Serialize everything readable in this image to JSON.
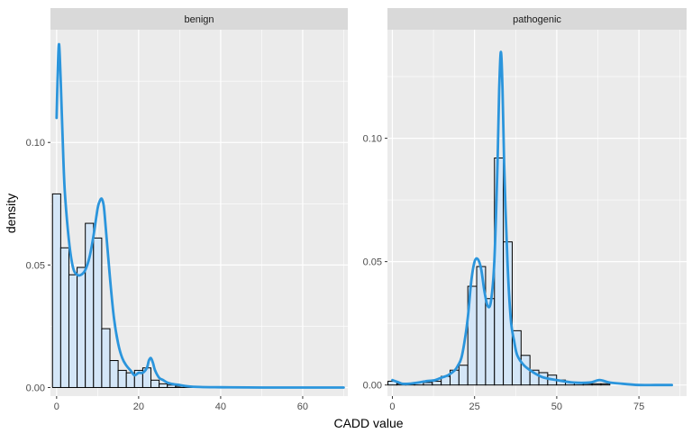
{
  "chart_data": {
    "type": "histogram-density",
    "xlabel": "CADD value",
    "ylabel": "density",
    "grid": true,
    "colors": {
      "panel_bg": "#ebebeb",
      "strip_bg": "#d9d9d9",
      "grid": "#ffffff",
      "bar_fill": "#d4e6f7",
      "bar_stroke": "#000000",
      "density_line": "#2b95dc"
    },
    "panels": [
      {
        "strip": "benign",
        "xlim": [
          -1.5,
          71
        ],
        "ylim": [
          -0.0035,
          0.146
        ],
        "xticks": [
          0,
          20,
          40,
          60
        ],
        "xtick_labels": [
          "0",
          "20",
          "40",
          "60"
        ],
        "yticks": [
          0.0,
          0.05,
          0.1
        ],
        "ytick_labels": [
          "0.00",
          "0.05",
          "0.10"
        ],
        "binwidth": 2,
        "bin_starts": [
          -1,
          1,
          3,
          5,
          7,
          9,
          11,
          13,
          15,
          17,
          19,
          21,
          23,
          25,
          27,
          29,
          31,
          33,
          35,
          37,
          39,
          41,
          43,
          45,
          47,
          49,
          51,
          53,
          55,
          57,
          59,
          61,
          63,
          65,
          67,
          69
        ],
        "bin_values": [
          0.079,
          0.057,
          0.046,
          0.049,
          0.067,
          0.061,
          0.024,
          0.011,
          0.007,
          0.006,
          0.007,
          0.008,
          0.003,
          0.0015,
          0.001,
          0.0005,
          0.0002,
          0.0002,
          0.0001,
          0.0001,
          0.0001,
          0,
          0,
          0,
          0,
          0,
          0,
          0,
          0,
          0,
          0,
          0,
          0,
          0,
          0,
          0
        ],
        "density_x": [
          0,
          0.3,
          0.6,
          1,
          1.5,
          2,
          3,
          4,
          5,
          6,
          7,
          8,
          9,
          10,
          10.5,
          11,
          11.5,
          12,
          13,
          14,
          15,
          16,
          17,
          18,
          19,
          20,
          21,
          22,
          22.5,
          23,
          23.5,
          24,
          25,
          26,
          27,
          28,
          30,
          32,
          35,
          40,
          50,
          60,
          70
        ],
        "density_y": [
          0.11,
          0.13,
          0.14,
          0.125,
          0.1,
          0.08,
          0.06,
          0.049,
          0.046,
          0.046,
          0.048,
          0.053,
          0.062,
          0.073,
          0.076,
          0.077,
          0.074,
          0.065,
          0.045,
          0.028,
          0.018,
          0.012,
          0.009,
          0.007,
          0.005,
          0.006,
          0.006,
          0.008,
          0.011,
          0.012,
          0.01,
          0.007,
          0.004,
          0.003,
          0.002,
          0.0015,
          0.001,
          0.0005,
          0.0002,
          0.0001,
          0,
          0,
          0
        ]
      },
      {
        "strip": "pathogenic",
        "xlim": [
          -1.5,
          89.5
        ],
        "ylim": [
          -0.0045,
          0.144
        ],
        "xticks": [
          0,
          25,
          50,
          75
        ],
        "xtick_labels": [
          "0",
          "25",
          "50",
          "75"
        ],
        "yticks": [
          0.0,
          0.05,
          0.1
        ],
        "ytick_labels": [
          "0.00",
          "0.05",
          "0.10"
        ],
        "binwidth": 2.7,
        "bin_starts": [
          -1.35,
          1.35,
          4.05,
          6.75,
          9.45,
          12.15,
          14.85,
          17.55,
          20.25,
          22.95,
          25.65,
          28.35,
          31.05,
          33.75,
          36.45,
          39.15,
          41.85,
          44.55,
          47.25,
          49.95,
          52.65,
          55.35,
          58.05,
          60.75,
          63.45,
          66.15,
          68.85,
          71.55,
          74.25,
          76.95,
          79.65,
          82.35
        ],
        "bin_values": [
          0.0015,
          0.0005,
          0.0007,
          0.001,
          0.001,
          0.0015,
          0.0035,
          0.006,
          0.008,
          0.04,
          0.048,
          0.035,
          0.092,
          0.058,
          0.022,
          0.012,
          0.006,
          0.005,
          0.004,
          0.002,
          0.001,
          0.001,
          0.0005,
          0.0005,
          0.0005,
          0,
          0,
          0,
          0,
          0,
          0,
          0
        ],
        "density_x": [
          0,
          1,
          2,
          3,
          5,
          8,
          10,
          13,
          15,
          17,
          19,
          20,
          21,
          22,
          23,
          24,
          25,
          26,
          27,
          28,
          29,
          30,
          31,
          32,
          32.5,
          33,
          33.5,
          34,
          35,
          36,
          37,
          38,
          40,
          43,
          46,
          50,
          55,
          60,
          63,
          66,
          70,
          75,
          80,
          85
        ],
        "density_y": [
          0.002,
          0.0015,
          0.001,
          0.0005,
          0.0005,
          0.001,
          0.0015,
          0.002,
          0.003,
          0.004,
          0.006,
          0.008,
          0.011,
          0.018,
          0.028,
          0.042,
          0.05,
          0.051,
          0.047,
          0.038,
          0.032,
          0.034,
          0.05,
          0.09,
          0.12,
          0.135,
          0.12,
          0.09,
          0.05,
          0.027,
          0.018,
          0.012,
          0.008,
          0.005,
          0.003,
          0.002,
          0.001,
          0.001,
          0.002,
          0.001,
          0.0005,
          0,
          0,
          0
        ]
      }
    ]
  }
}
